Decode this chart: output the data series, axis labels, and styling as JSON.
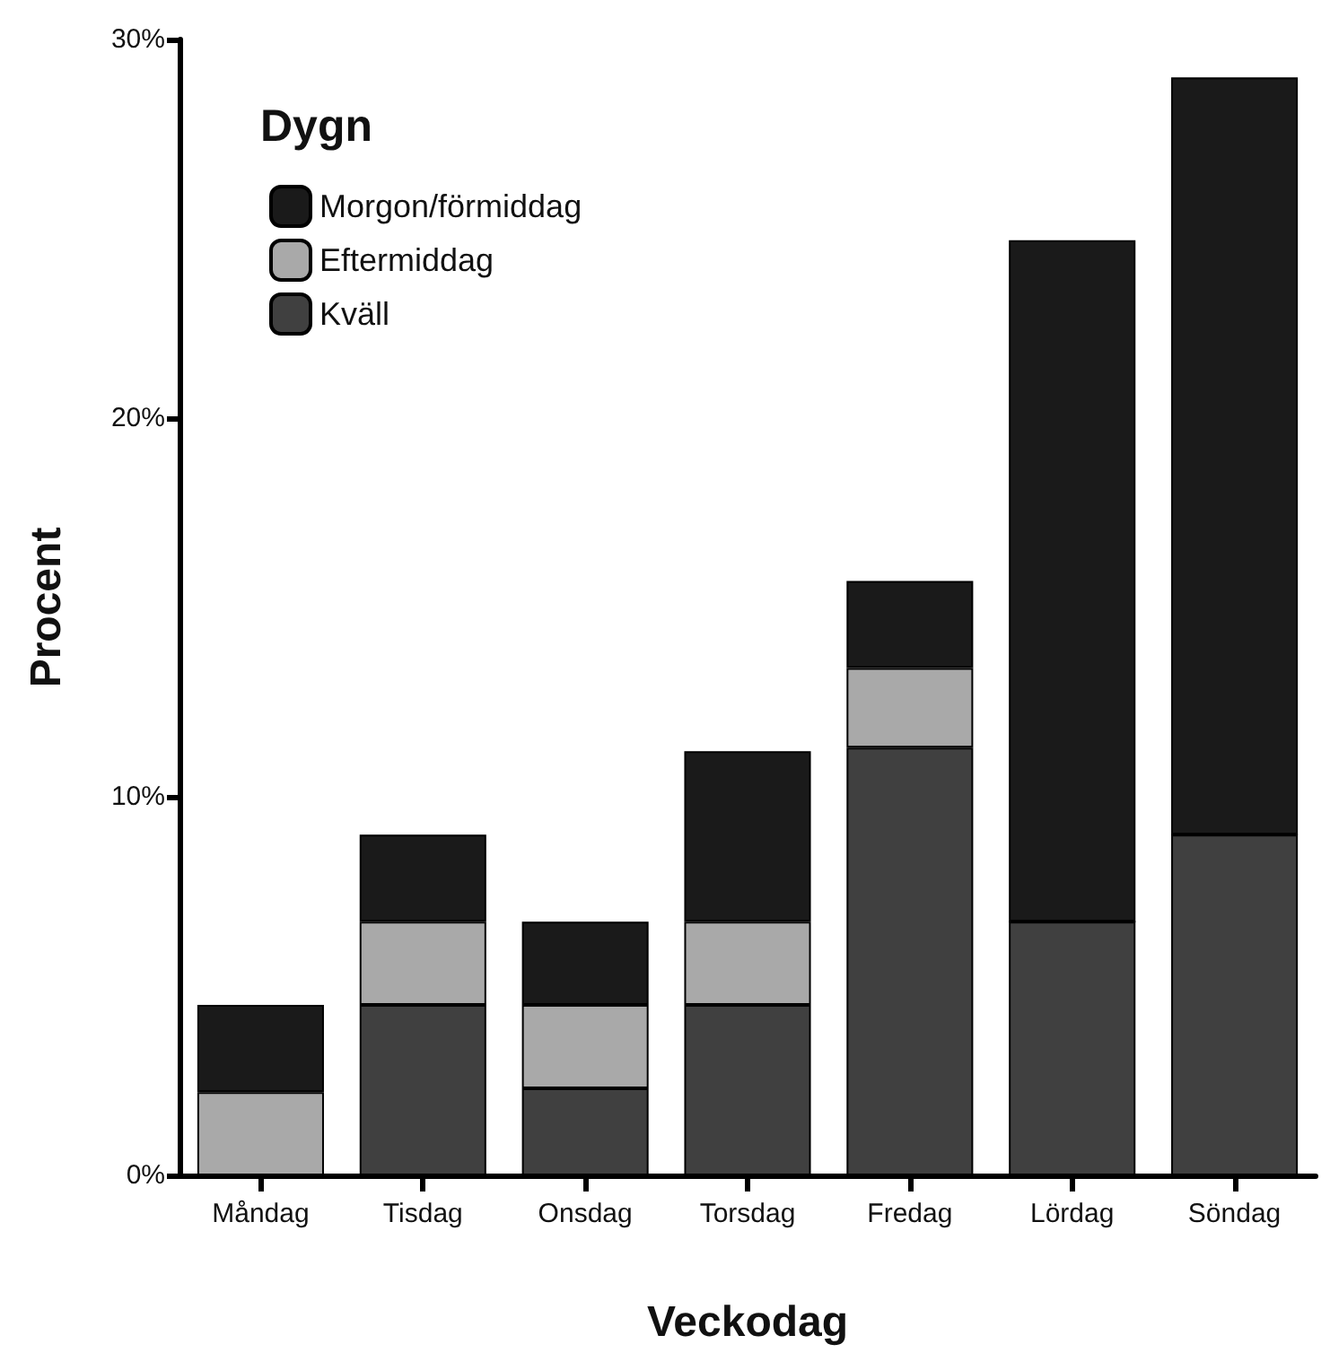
{
  "chart_data": {
    "type": "bar",
    "stacked": true,
    "xlabel": "Veckodag",
    "ylabel": "Procent",
    "legend_title": "Dygn",
    "legend": "top left",
    "grid": false,
    "categories": [
      "Måndag",
      "Tisdag",
      "Onsdag",
      "Torsdag",
      "Fredag",
      "Lördag",
      "Söndag"
    ],
    "series": [
      {
        "name": "Kväll",
        "color": "#404040",
        "values": [
          0,
          4.5,
          2.3,
          4.5,
          11.3,
          6.7,
          9.0
        ]
      },
      {
        "name": "Eftermiddag",
        "color": "#a9a9a9",
        "values": [
          2.2,
          2.2,
          2.2,
          2.2,
          2.1,
          0,
          0
        ]
      },
      {
        "name": "Morgon/förmiddag",
        "color": "#1a1a1a",
        "values": [
          2.3,
          2.3,
          2.2,
          4.5,
          2.3,
          18.0,
          20.0
        ]
      }
    ],
    "ylim": [
      0,
      30
    ],
    "yticks": [
      {
        "value": 0,
        "label": "0%"
      },
      {
        "value": 10,
        "label": "10%"
      },
      {
        "value": 20,
        "label": "20%"
      },
      {
        "value": 30,
        "label": "30%"
      }
    ]
  }
}
